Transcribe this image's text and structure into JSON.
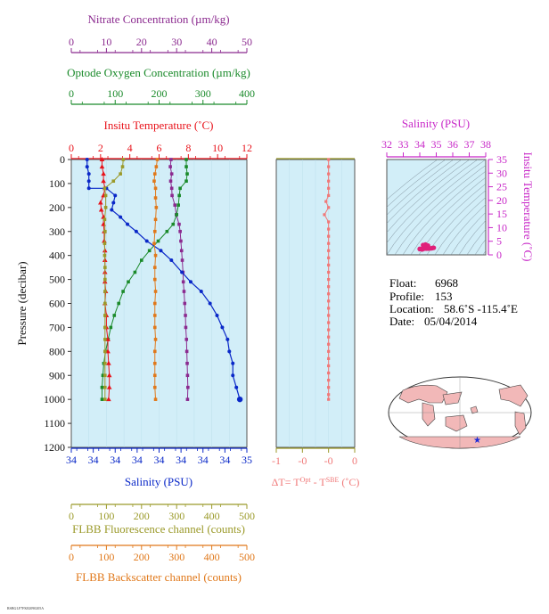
{
  "colors": {
    "nitrate": "#8b2a8f",
    "oxygen": "#1a8a2a",
    "temperature": "#e8121a",
    "salinity": "#0a28c8",
    "fluorescence": "#9b9a2a",
    "backscatter": "#e0781a",
    "dt": "#f07878",
    "panel_bg": "#d2eef8",
    "ts_line": "#7a8a96",
    "ts_point": "#e0207a",
    "magenta": "#c828c8",
    "land": "#f2b8b8",
    "sea": "#ffffff"
  },
  "chart_data": [
    {
      "type": "line",
      "panel": "main-profile",
      "ylabel": "Pressure (decibar)",
      "ylim": [
        0,
        1200
      ],
      "yticks": [
        "0",
        "100",
        "200",
        "300",
        "400",
        "500",
        "600",
        "700",
        "800",
        "900",
        "1000",
        "1100",
        "1200"
      ],
      "axes": {
        "nitrate": {
          "label": "Nitrate Concentration (µm/kg)",
          "range": [
            0,
            50
          ],
          "ticks": [
            "0",
            "10",
            "20",
            "30",
            "40",
            "50"
          ]
        },
        "oxygen": {
          "label": "Optode Oxygen Concentration (µm/kg)",
          "range": [
            0,
            400
          ],
          "ticks": [
            "0",
            "100",
            "200",
            "300",
            "400"
          ]
        },
        "temperature": {
          "label": "Insitu Temperature (˚C)",
          "range": [
            0,
            12
          ],
          "ticks": [
            "0",
            "2",
            "4",
            "6",
            "8",
            "10",
            "12"
          ]
        },
        "salinity": {
          "label": "Salinity (PSU)",
          "range": [
            33.9,
            34.9
          ],
          "ticks": [
            "34",
            "34",
            "34",
            "34",
            "34",
            "34",
            "34",
            "34",
            "35"
          ]
        },
        "fluorescence": {
          "label": "FLBB Fluorescence channel (counts)",
          "range": [
            0,
            500
          ],
          "ticks": [
            "0",
            "100",
            "200",
            "300",
            "400",
            "500"
          ]
        },
        "backscatter": {
          "label": "FLBB Backscatter channel (counts)",
          "range": [
            0,
            500
          ],
          "ticks": [
            "0",
            "100",
            "200",
            "300",
            "400",
            "500"
          ]
        }
      },
      "series": [
        {
          "name": "Nitrate Concentration (µm/kg)",
          "axis": "nitrate",
          "markers": true,
          "points": [
            [
              28.4,
              0
            ],
            [
              28.2,
              30
            ],
            [
              28.6,
              60
            ],
            [
              28.3,
              90
            ],
            [
              28.6,
              120
            ],
            [
              28.7,
              150
            ],
            [
              29.5,
              190
            ],
            [
              29.9,
              230
            ],
            [
              30.7,
              270
            ],
            [
              31.0,
              300
            ],
            [
              31.2,
              340
            ],
            [
              31.4,
              380
            ],
            [
              31.6,
              420
            ],
            [
              31.8,
              470
            ],
            [
              31.9,
              510
            ],
            [
              32.1,
              550
            ],
            [
              32.3,
              600
            ],
            [
              32.5,
              650
            ],
            [
              32.6,
              700
            ],
            [
              32.8,
              750
            ],
            [
              32.9,
              800
            ],
            [
              33.0,
              850
            ],
            [
              33.1,
              900
            ],
            [
              33.2,
              950
            ],
            [
              33.1,
              1000
            ]
          ]
        },
        {
          "name": "Optode Oxygen Concentration (µm/kg)",
          "axis": "oxygen",
          "markers": true,
          "points": [
            [
              262,
              0
            ],
            [
              262,
              30
            ],
            [
              264,
              60
            ],
            [
              262,
              90
            ],
            [
              248,
              120
            ],
            [
              246,
              150
            ],
            [
              244,
              190
            ],
            [
              240,
              230
            ],
            [
              232,
              270
            ],
            [
              218,
              300
            ],
            [
              198,
              340
            ],
            [
              178,
              380
            ],
            [
              160,
              420
            ],
            [
              145,
              470
            ],
            [
              130,
              510
            ],
            [
              118,
              550
            ],
            [
              108,
              600
            ],
            [
              98,
              650
            ],
            [
              90,
              700
            ],
            [
              84,
              750
            ],
            [
              78,
              800
            ],
            [
              74,
              850
            ],
            [
              72,
              900
            ],
            [
              70,
              950
            ],
            [
              70,
              1000
            ]
          ]
        },
        {
          "name": "Insitu Temperature (˚C)",
          "axis": "temperature",
          "markers": true,
          "points": [
            [
              2.1,
              0
            ],
            [
              2.1,
              30
            ],
            [
              2.2,
              60
            ],
            [
              2.2,
              90
            ],
            [
              2.3,
              120
            ],
            [
              2.2,
              150
            ],
            [
              2.0,
              180
            ],
            [
              2.05,
              210
            ],
            [
              2.2,
              240
            ],
            [
              2.2,
              270
            ],
            [
              2.25,
              300
            ],
            [
              2.25,
              340
            ],
            [
              2.3,
              380
            ],
            [
              2.3,
              420
            ],
            [
              2.3,
              470
            ],
            [
              2.3,
              510
            ],
            [
              2.35,
              550
            ],
            [
              2.3,
              600
            ],
            [
              2.4,
              650
            ],
            [
              2.4,
              700
            ],
            [
              2.5,
              750
            ],
            [
              2.5,
              800
            ],
            [
              2.55,
              850
            ],
            [
              2.6,
              900
            ],
            [
              2.6,
              950
            ],
            [
              2.55,
              1000
            ]
          ]
        },
        {
          "name": "Salinity (PSU)",
          "axis": "salinity",
          "markers": true,
          "points": [
            [
              33.99,
              0
            ],
            [
              33.99,
              30
            ],
            [
              34.0,
              60
            ],
            [
              34.0,
              90
            ],
            [
              34.0,
              120
            ],
            [
              34.1,
              120
            ],
            [
              34.15,
              150
            ],
            [
              34.14,
              180
            ],
            [
              34.13,
              210
            ],
            [
              34.18,
              240
            ],
            [
              34.22,
              270
            ],
            [
              34.27,
              300
            ],
            [
              34.33,
              340
            ],
            [
              34.41,
              380
            ],
            [
              34.47,
              420
            ],
            [
              34.53,
              470
            ],
            [
              34.58,
              510
            ],
            [
              34.64,
              550
            ],
            [
              34.69,
              600
            ],
            [
              34.73,
              650
            ],
            [
              34.76,
              700
            ],
            [
              34.79,
              750
            ],
            [
              34.8,
              800
            ],
            [
              34.82,
              850
            ],
            [
              34.82,
              900
            ],
            [
              34.84,
              950
            ],
            [
              34.86,
              1000
            ]
          ]
        },
        {
          "name": "FLBB Fluorescence channel (counts)",
          "axis": "fluorescence",
          "markers": true,
          "points": [
            [
              148,
              0
            ],
            [
              146,
              30
            ],
            [
              140,
              60
            ],
            [
              120,
              90
            ],
            [
              95,
              120
            ],
            [
              98,
              150
            ],
            [
              98,
              200
            ],
            [
              95,
              250
            ],
            [
              96,
              300
            ],
            [
              95,
              350
            ],
            [
              95,
              400
            ],
            [
              96,
              450
            ],
            [
              96,
              500
            ],
            [
              96,
              550
            ],
            [
              96,
              600
            ],
            [
              96,
              650
            ],
            [
              96,
              700
            ],
            [
              96,
              750
            ],
            [
              96,
              800
            ],
            [
              96,
              850
            ],
            [
              96,
              900
            ],
            [
              96,
              950
            ],
            [
              96,
              1000
            ]
          ]
        },
        {
          "name": "FLBB Backscatter channel (counts)",
          "axis": "backscatter",
          "markers": true,
          "points": [
            [
              245,
              0
            ],
            [
              242,
              30
            ],
            [
              238,
              60
            ],
            [
              236,
              90
            ],
            [
              240,
              120
            ],
            [
              240,
              160
            ],
            [
              242,
              200
            ],
            [
              240,
              250
            ],
            [
              238,
              300
            ],
            [
              236,
              350
            ],
            [
              240,
              400
            ],
            [
              238,
              450
            ],
            [
              238,
              500
            ],
            [
              240,
              550
            ],
            [
              238,
              600
            ],
            [
              238,
              650
            ],
            [
              238,
              700
            ],
            [
              240,
              750
            ],
            [
              238,
              800
            ],
            [
              238,
              850
            ],
            [
              238,
              900
            ],
            [
              238,
              950
            ],
            [
              240,
              1000
            ]
          ]
        }
      ]
    },
    {
      "type": "line",
      "panel": "dt-profile",
      "xlabel": "ΔT= T",
      "xlabel_sup": "Opt",
      "xlabel_mid": " - T",
      "xlabel_sup2": "SBE",
      "xlabel_unit": " (˚C)",
      "xlim": [
        -1,
        0.5
      ],
      "xticks": [
        "-1",
        "-0",
        "-0",
        "0"
      ],
      "series": [
        {
          "name": "ΔT",
          "markers": true,
          "points": [
            [
              0,
              0
            ],
            [
              0,
              30
            ],
            [
              0,
              60
            ],
            [
              0,
              90
            ],
            [
              0,
              120
            ],
            [
              0,
              150
            ],
            [
              -0.05,
              175
            ],
            [
              0,
              200
            ],
            [
              -0.08,
              230
            ],
            [
              0,
              260
            ],
            [
              0,
              290
            ],
            [
              0,
              320
            ],
            [
              0,
              350
            ],
            [
              0,
              380
            ],
            [
              0,
              410
            ],
            [
              0,
              440
            ],
            [
              0,
              470
            ],
            [
              0,
              500
            ],
            [
              0,
              530
            ],
            [
              0,
              560
            ],
            [
              0,
              590
            ],
            [
              0,
              620
            ],
            [
              0,
              650
            ],
            [
              0,
              680
            ],
            [
              0,
              710
            ],
            [
              0,
              740
            ],
            [
              0,
              770
            ],
            [
              0,
              800
            ],
            [
              0,
              830
            ],
            [
              0,
              860
            ],
            [
              0,
              890
            ],
            [
              0,
              920
            ],
            [
              0,
              950
            ],
            [
              0,
              980
            ],
            [
              0,
              1000
            ]
          ]
        }
      ]
    },
    {
      "type": "scatter",
      "panel": "ts-diagram",
      "xlabel": "Salinity (PSU)",
      "ylabel": "Insitu Temperature (˚C)",
      "xlim": [
        32,
        38
      ],
      "ylim": [
        0,
        35
      ],
      "xticks": [
        "32",
        "33",
        "34",
        "35",
        "36",
        "37",
        "38"
      ],
      "yticks": [
        "0",
        "5",
        "10",
        "15",
        "20",
        "25",
        "30",
        "35"
      ],
      "points": [
        [
          34.0,
          2.1
        ],
        [
          34.0,
          2.2
        ],
        [
          34.1,
          2.2
        ],
        [
          34.15,
          2.0
        ],
        [
          34.2,
          2.2
        ],
        [
          34.3,
          2.3
        ],
        [
          34.4,
          2.3
        ],
        [
          34.5,
          2.3
        ],
        [
          34.6,
          2.35
        ],
        [
          34.7,
          2.4
        ],
        [
          34.75,
          2.5
        ],
        [
          34.8,
          2.55
        ],
        [
          34.85,
          2.6
        ],
        [
          34.2,
          3.6
        ],
        [
          34.35,
          3.8
        ],
        [
          34.5,
          3.4
        ],
        [
          34.25,
          3.1
        ]
      ]
    }
  ],
  "info": {
    "float_label": "Float:",
    "float_value": "6968",
    "profile_label": "Profile:",
    "profile_value": "153",
    "location_label": "Location:",
    "location_value": "58.6˚S  -115.4˚E",
    "date_label": "Date:",
    "date_value": "05/04/2014"
  },
  "footer": {
    "code": "RSBGLF7FK82090205A"
  },
  "map": {
    "marker_symbol": "★"
  }
}
